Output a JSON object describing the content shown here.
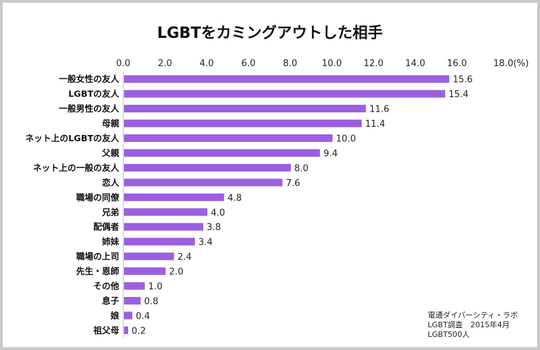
{
  "chart_data": {
    "type": "bar",
    "orientation": "horizontal",
    "title": "LGBTをカミングアウトした相手",
    "unit_label": "(%)",
    "categories": [
      "一般女性の友人",
      "LGBTの友人",
      "一般男性の友人",
      "母親",
      "ネット上のLGBTの友人",
      "父親",
      "ネット上の一般の友人",
      "恋人",
      "職場の同僚",
      "兄弟",
      "配偶者",
      "姉妹",
      "職場の上司",
      "先生・恩師",
      "その他",
      "息子",
      "娘",
      "祖父母"
    ],
    "values": [
      15.6,
      15.4,
      11.6,
      11.4,
      10.0,
      9.4,
      8.0,
      7.6,
      4.8,
      4.0,
      3.8,
      3.4,
      2.4,
      2.0,
      1.0,
      0.8,
      0.4,
      0.2
    ],
    "xlim": [
      0,
      18
    ],
    "ticks": [
      "0.0",
      "2.0",
      "4.0",
      "6.0",
      "8.0",
      "10.0",
      "12.0",
      "14.0",
      "16.0",
      "18.0"
    ],
    "axis_position": "top",
    "grid": false,
    "bar_color": "#9b5fe0"
  },
  "source_note": [
    "電通ダイバーシティ・ラボ",
    "LGBT調査　2015年4月",
    "LGBT500人"
  ]
}
